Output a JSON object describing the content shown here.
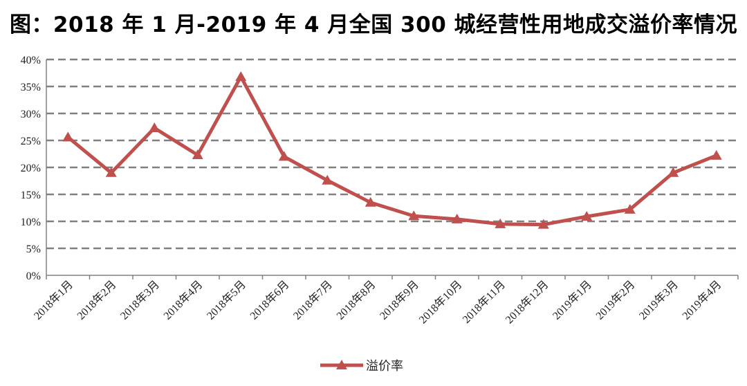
{
  "chart_data": {
    "type": "line",
    "title": "图：2018 年 1 月-2019 年 4 月全国 300 城经营性用地成交溢价率情况",
    "xlabel": "",
    "ylabel": "",
    "categories": [
      "2018年1月",
      "2018年2月",
      "2018年3月",
      "2018年4月",
      "2018年5月",
      "2018年6月",
      "2018年7月",
      "2018年8月",
      "2018年9月",
      "2018年10月",
      "2018年11月",
      "2018年12月",
      "2019年1月",
      "2019年2月",
      "2019年3月",
      "2019年4月"
    ],
    "series": [
      {
        "name": "溢价率",
        "values": [
          25.6,
          19.0,
          27.3,
          22.3,
          36.8,
          22.0,
          17.6,
          13.5,
          11.0,
          10.4,
          9.5,
          9.4,
          10.9,
          12.2,
          19.0,
          22.2
        ]
      }
    ],
    "ylim": [
      0,
      40
    ],
    "yticks": [
      "0%",
      "5%",
      "10%",
      "15%",
      "20%",
      "25%",
      "30%",
      "35%",
      "40%"
    ],
    "grid": true,
    "legend_position": "bottom-center",
    "colors": {
      "series": "#C0504D",
      "grid": "#808080",
      "axis": "#808080"
    }
  }
}
